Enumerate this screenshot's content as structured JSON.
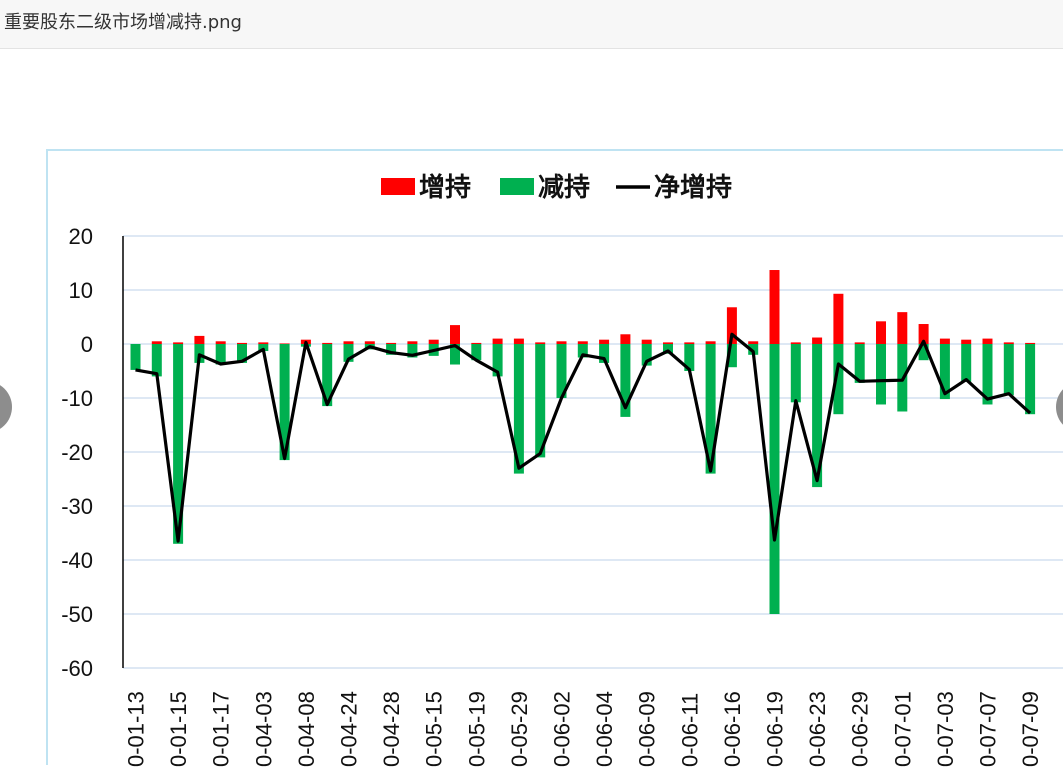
{
  "window": {
    "title": "重要股东二级市场增减持.png"
  },
  "colors": {
    "increase": "#ff0000",
    "decrease": "#00b050",
    "net": "#000000",
    "grid": "#c9d9ee",
    "frame": "#bfe3f2"
  },
  "chart_data": {
    "type": "bar",
    "legend": {
      "position": "top",
      "entries": [
        "增持",
        "减持",
        "净增持"
      ]
    },
    "grid": true,
    "ylim": [
      -60,
      20
    ],
    "yticks": [
      "20",
      "10",
      "0",
      "-10",
      "-20",
      "-30",
      "-40",
      "-50",
      "-60"
    ],
    "categories": [
      "0-01-13",
      "",
      "0-01-15",
      "",
      "0-01-17",
      "",
      "0-04-03",
      "",
      "0-04-08",
      "",
      "0-04-24",
      "",
      "0-04-28",
      "",
      "0-05-15",
      "",
      "0-05-19",
      "",
      "0-05-29",
      "",
      "0-06-02",
      "",
      "0-06-04",
      "",
      "0-06-09",
      "",
      "0-06-11",
      "",
      "0-06-16",
      "",
      "0-06-19",
      "",
      "0-06-23",
      "",
      "0-06-29",
      "",
      "0-07-01",
      "",
      "0-07-03",
      "",
      "0-07-07",
      "",
      "0-07-09"
    ],
    "series": [
      {
        "name": "增持",
        "type": "bar",
        "values": [
          0,
          0.5,
          0.3,
          1.5,
          0.5,
          0.2,
          0.3,
          0.1,
          0.8,
          0.2,
          0.5,
          0.5,
          0.2,
          0.5,
          0.8,
          3.5,
          0.2,
          1.0,
          1.0,
          0.3,
          0.5,
          0.5,
          0.8,
          1.8,
          0.8,
          0.3,
          0.3,
          0.5,
          6.8,
          0.5,
          13.7,
          0.3,
          1.2,
          9.3,
          0.3,
          4.2,
          5.9,
          3.7,
          1.0,
          0.8,
          1.0,
          0.3,
          0.2
        ]
      },
      {
        "name": "减持",
        "type": "bar",
        "values": [
          -4.8,
          -6.0,
          -37.0,
          -3.5,
          -3.8,
          -3.5,
          -1.3,
          -21.5,
          -0.5,
          -11.5,
          -3.3,
          -1.0,
          -2.0,
          -2.5,
          -2.2,
          -3.8,
          -3.0,
          -6.0,
          -24.0,
          -21.0,
          -10.0,
          -2.5,
          -3.5,
          -13.5,
          -4.0,
          -1.8,
          -5.0,
          -24.0,
          -4.3,
          -2.0,
          -50.0,
          -10.8,
          -26.5,
          -13.0,
          -7.2,
          -11.2,
          -12.5,
          -3.0,
          -10.2,
          -7.0,
          -11.2,
          -9.5,
          -13.0
        ]
      },
      {
        "name": "净增持",
        "type": "line",
        "values": [
          -4.8,
          -5.5,
          -36.5,
          -2.0,
          -3.7,
          -3.2,
          -1.0,
          -21.2,
          0.3,
          -11.2,
          -2.8,
          -0.5,
          -1.6,
          -2.1,
          -1.2,
          -0.3,
          -3.0,
          -5.2,
          -23.0,
          -20.3,
          -10.0,
          -2.0,
          -2.7,
          -11.8,
          -3.2,
          -1.3,
          -4.7,
          -23.5,
          1.8,
          -1.4,
          -36.3,
          -10.5,
          -25.3,
          -3.7,
          -6.9,
          -6.8,
          -6.7,
          0.5,
          -9.2,
          -6.6,
          -10.2,
          -9.2,
          -12.8
        ]
      }
    ]
  }
}
